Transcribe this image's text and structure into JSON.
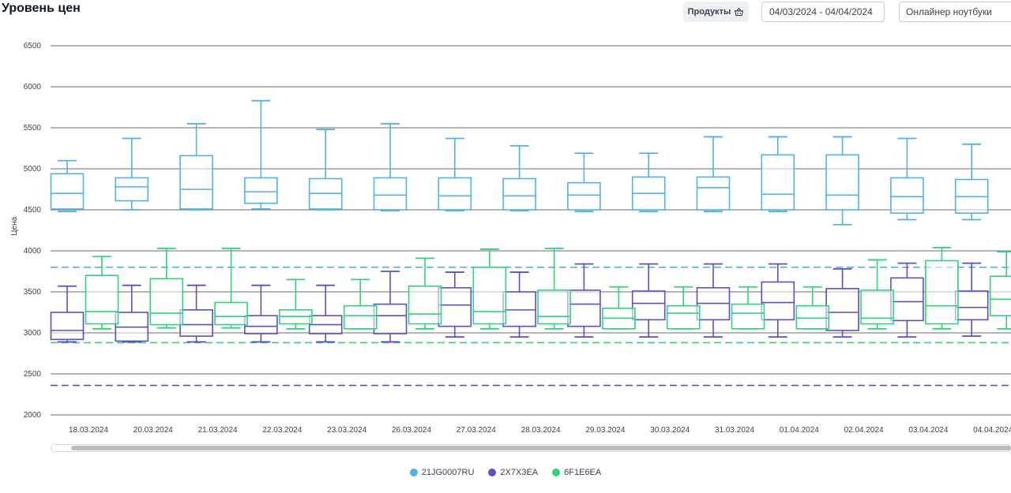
{
  "header": {
    "title": "Уровень цен",
    "products_label": "Продукты",
    "products_icon": "basket-icon",
    "date_range": "04/03/2024 - 04/04/2024",
    "category": "Онлайнер ноутбуки"
  },
  "colors": {
    "21JG0007RU": "#4db3e6",
    "2X7X3EA": "#5b4fc4",
    "6F1E6EA": "#2ed47a"
  },
  "chart_data": {
    "type": "boxplot",
    "title": "",
    "xlabel": "",
    "ylabel": "Цена",
    "ylim": [
      2000,
      6500
    ],
    "yticks": [
      2000,
      2500,
      3000,
      3500,
      4000,
      4500,
      5000,
      5500,
      6000,
      6500
    ],
    "grid": true,
    "legend_position": "bottom",
    "categories": [
      "18.03.2024",
      "20.03.2024",
      "21.03.2024",
      "22.03.2024",
      "23.03.2024",
      "26.03.2024",
      "27.03.2024",
      "28.03.2024",
      "29.03.2024",
      "30.03.2024",
      "31.03.2024",
      "01.04.2024",
      "02.04.2024",
      "03.04.2024",
      "04.04.2024"
    ],
    "reference_lines": [
      {
        "series": "21JG0007RU",
        "value": 3800
      },
      {
        "series": "6F1E6EA",
        "value": 2880
      },
      {
        "series": "2X7X3EA",
        "value": 2360
      }
    ],
    "series": [
      {
        "name": "21JG0007RU",
        "boxes": [
          {
            "min": 4480,
            "q1": 4510,
            "median": 4700,
            "q3": 4940,
            "max": 5100
          },
          {
            "min": 4500,
            "q1": 4610,
            "median": 4780,
            "q3": 4890,
            "max": 5370
          },
          {
            "min": 4500,
            "q1": 4510,
            "median": 4750,
            "q3": 5160,
            "max": 5550
          },
          {
            "min": 4510,
            "q1": 4580,
            "median": 4720,
            "q3": 4890,
            "max": 5830
          },
          {
            "min": 4500,
            "q1": 4510,
            "median": 4700,
            "q3": 4880,
            "max": 5480
          },
          {
            "min": 4490,
            "q1": 4500,
            "median": 4680,
            "q3": 4890,
            "max": 5550
          },
          {
            "min": 4490,
            "q1": 4500,
            "median": 4670,
            "q3": 4890,
            "max": 5370
          },
          {
            "min": 4490,
            "q1": 4500,
            "median": 4670,
            "q3": 4880,
            "max": 5280
          },
          {
            "min": 4480,
            "q1": 4500,
            "median": 4680,
            "q3": 4830,
            "max": 5190
          },
          {
            "min": 4480,
            "q1": 4500,
            "median": 4700,
            "q3": 4900,
            "max": 5190
          },
          {
            "min": 4480,
            "q1": 4500,
            "median": 4770,
            "q3": 4900,
            "max": 5390
          },
          {
            "min": 4480,
            "q1": 4500,
            "median": 4690,
            "q3": 5170,
            "max": 5390
          },
          {
            "min": 4320,
            "q1": 4500,
            "median": 4680,
            "q3": 5170,
            "max": 5390
          },
          {
            "min": 4380,
            "q1": 4460,
            "median": 4660,
            "q3": 4890,
            "max": 5370
          },
          {
            "min": 4380,
            "q1": 4460,
            "median": 4660,
            "q3": 4870,
            "max": 5300
          }
        ]
      },
      {
        "name": "2X7X3EA",
        "boxes": [
          {
            "min": 2890,
            "q1": 2920,
            "median": 3030,
            "q3": 3250,
            "max": 3570
          },
          {
            "min": 2890,
            "q1": 2900,
            "median": 3070,
            "q3": 3250,
            "max": 3580
          },
          {
            "min": 2890,
            "q1": 2960,
            "median": 3100,
            "q3": 3280,
            "max": 3580
          },
          {
            "min": 2890,
            "q1": 2990,
            "median": 3080,
            "q3": 3210,
            "max": 3580
          },
          {
            "min": 2890,
            "q1": 2990,
            "median": 3100,
            "q3": 3210,
            "max": 3580
          },
          {
            "min": 2890,
            "q1": 2990,
            "median": 3210,
            "q3": 3350,
            "max": 3750
          },
          {
            "min": 2950,
            "q1": 3080,
            "median": 3340,
            "q3": 3550,
            "max": 3740
          },
          {
            "min": 2950,
            "q1": 3080,
            "median": 3280,
            "q3": 3500,
            "max": 3740
          },
          {
            "min": 2950,
            "q1": 3080,
            "median": 3350,
            "q3": 3520,
            "max": 3840
          },
          {
            "min": 2950,
            "q1": 3160,
            "median": 3360,
            "q3": 3510,
            "max": 3840
          },
          {
            "min": 2950,
            "q1": 3160,
            "median": 3360,
            "q3": 3550,
            "max": 3840
          },
          {
            "min": 2950,
            "q1": 3160,
            "median": 3370,
            "q3": 3620,
            "max": 3840
          },
          {
            "min": 2950,
            "q1": 3030,
            "median": 3250,
            "q3": 3540,
            "max": 3780
          },
          {
            "min": 2950,
            "q1": 3150,
            "median": 3380,
            "q3": 3670,
            "max": 3850
          },
          {
            "min": 2960,
            "q1": 3160,
            "median": 3310,
            "q3": 3510,
            "max": 3850
          }
        ]
      },
      {
        "name": "6F1E6EA",
        "boxes": [
          {
            "min": 3050,
            "q1": 3110,
            "median": 3260,
            "q3": 3700,
            "max": 3930
          },
          {
            "min": 3060,
            "q1": 3100,
            "median": 3240,
            "q3": 3660,
            "max": 4030
          },
          {
            "min": 3060,
            "q1": 3100,
            "median": 3200,
            "q3": 3370,
            "max": 4030
          },
          {
            "min": 3050,
            "q1": 3110,
            "median": 3200,
            "q3": 3280,
            "max": 3650
          },
          {
            "min": 3050,
            "q1": 3050,
            "median": 3210,
            "q3": 3330,
            "max": 3650
          },
          {
            "min": 3050,
            "q1": 3110,
            "median": 3230,
            "q3": 3570,
            "max": 3910
          },
          {
            "min": 3050,
            "q1": 3110,
            "median": 3260,
            "q3": 3800,
            "max": 4020
          },
          {
            "min": 3050,
            "q1": 3110,
            "median": 3200,
            "q3": 3520,
            "max": 4030
          },
          {
            "min": 3050,
            "q1": 3050,
            "median": 3180,
            "q3": 3300,
            "max": 3560
          },
          {
            "min": 3050,
            "q1": 3050,
            "median": 3240,
            "q3": 3330,
            "max": 3560
          },
          {
            "min": 3050,
            "q1": 3050,
            "median": 3240,
            "q3": 3350,
            "max": 3560
          },
          {
            "min": 3050,
            "q1": 3050,
            "median": 3180,
            "q3": 3330,
            "max": 3560
          },
          {
            "min": 3050,
            "q1": 3110,
            "median": 3180,
            "q3": 3520,
            "max": 3890
          },
          {
            "min": 3050,
            "q1": 3110,
            "median": 3330,
            "q3": 3880,
            "max": 4040
          },
          {
            "min": 3050,
            "q1": 3210,
            "median": 3410,
            "q3": 3690,
            "max": 3990
          }
        ]
      }
    ]
  }
}
